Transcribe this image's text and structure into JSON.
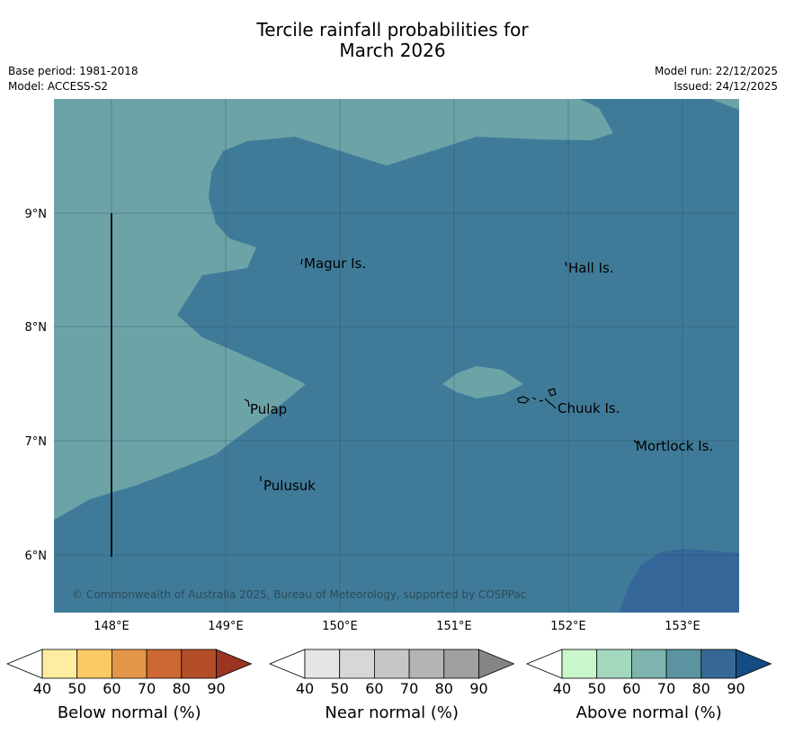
{
  "title_line1": "Tercile rainfall probabilities for",
  "title_line2": "March 2026",
  "base_period": "Base period: 1981-2018",
  "model": "Model: ACCESS-S2",
  "model_run": "Model run: 22/12/2025",
  "issued": "Issued: 24/12/2025",
  "copyright": "© Commonwealth of Australia 2025, Bureau of Meteorology, supported by COSPPac",
  "lat_ticks": [
    "9°N",
    "8°N",
    "7°N",
    "6°N"
  ],
  "lon_ticks": [
    "148°E",
    "149°E",
    "150°E",
    "151°E",
    "152°E",
    "153°E"
  ],
  "places": [
    "Magur Is.",
    "Hall Is.",
    "Pulap",
    "Chuuk Is.",
    "Mortlock Is.",
    "Pulusuk"
  ],
  "colorbars": [
    {
      "title": "Below normal (%)",
      "ticks": [
        "40",
        "50",
        "60",
        "70",
        "80",
        "90"
      ],
      "colors": [
        "#ffffff",
        "#feeda0",
        "#fdc965",
        "#e3964a",
        "#cd6733",
        "#b44e28",
        "#9a3522"
      ]
    },
    {
      "title": "Near normal (%)",
      "ticks": [
        "40",
        "50",
        "60",
        "70",
        "80",
        "90"
      ],
      "colors": [
        "#ffffff",
        "#e6e6e6",
        "#d7d7d7",
        "#c6c6c6",
        "#b4b4b4",
        "#a0a0a0",
        "#858585"
      ]
    },
    {
      "title": "Above normal (%)",
      "ticks": [
        "40",
        "50",
        "60",
        "70",
        "80",
        "90"
      ],
      "colors": [
        "#ffffff",
        "#c8f7cc",
        "#a4d8be",
        "#7db4ae",
        "#5b94a0",
        "#356895",
        "#154c83"
      ]
    }
  ],
  "colors": {
    "band_70_80": "#6ca3a7",
    "band_80_90": "#3f7b99",
    "band_90_plus": "#35679a"
  }
}
